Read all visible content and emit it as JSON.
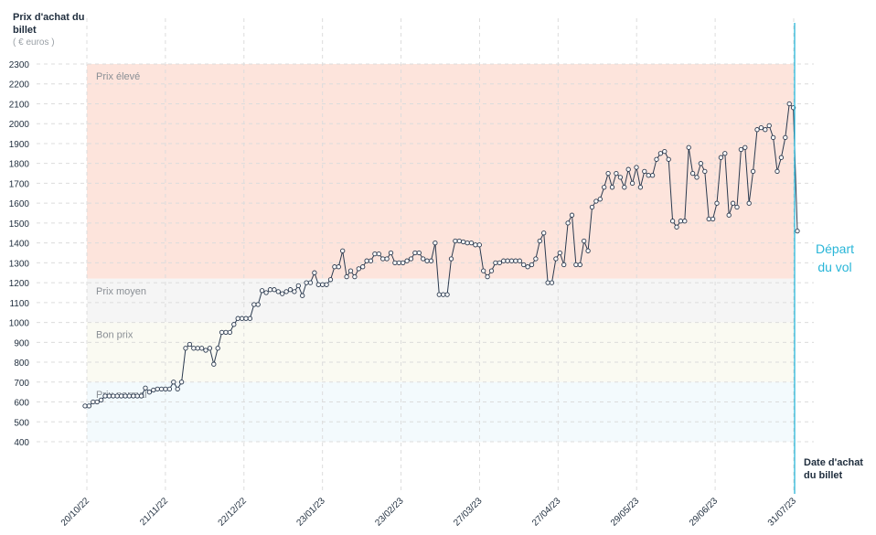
{
  "labels": {
    "y_title": "Prix d'achat du billet",
    "y_unit": "( € euros )",
    "x_title": "Date d'achat du billet",
    "departure": "Départ du vol"
  },
  "colors": {
    "line": "#2b3a4f",
    "departure_line": "#29b6d8",
    "grid": "#dcdcdc",
    "band_high": "#fde4dc",
    "band_mid": "#f5f5f5",
    "band_good": "#fafaf2",
    "band_normal": "#f3fafd"
  },
  "chart_data": {
    "type": "line",
    "ylim": [
      400,
      2300
    ],
    "yticks": [
      400,
      500,
      600,
      700,
      800,
      900,
      1000,
      1100,
      1200,
      1300,
      1400,
      1500,
      1600,
      1700,
      1800,
      1900,
      2000,
      2100,
      2200,
      2300
    ],
    "xtick_labels": [
      "20/10/22",
      "21/11/22",
      "22/12/22",
      "23/01/23",
      "23/02/23",
      "27/03/23",
      "27/04/23",
      "29/05/23",
      "29/06/23",
      "31/07/23"
    ],
    "bands": [
      {
        "label": "Prix élevé",
        "from": 1220,
        "to": 2300
      },
      {
        "label": "Prix moyen",
        "from": 1000,
        "to": 1220
      },
      {
        "label": "Bon prix",
        "from": 700,
        "to": 1000
      },
      {
        "label": "Prix normal",
        "from": 400,
        "to": 700
      }
    ],
    "series": [
      {
        "values": [
          580,
          580,
          600,
          600,
          610,
          630,
          630,
          630,
          630,
          630,
          630,
          630,
          630,
          630,
          630,
          670,
          650,
          660,
          665,
          665,
          665,
          665,
          700,
          665,
          700,
          870,
          890,
          870,
          870,
          870,
          860,
          870,
          790,
          870,
          950,
          950,
          950,
          990,
          1020,
          1020,
          1020,
          1020,
          1090,
          1090,
          1160,
          1150,
          1165,
          1165,
          1155,
          1145,
          1155,
          1165,
          1155,
          1185,
          1135,
          1200,
          1200,
          1250,
          1190,
          1190,
          1190,
          1215,
          1280,
          1280,
          1360,
          1230,
          1260,
          1230,
          1270,
          1280,
          1310,
          1310,
          1345,
          1345,
          1320,
          1320,
          1350,
          1300,
          1300,
          1300,
          1310,
          1320,
          1350,
          1350,
          1320,
          1310,
          1310,
          1400,
          1140,
          1140,
          1140,
          1320,
          1410,
          1410,
          1405,
          1400,
          1400,
          1390,
          1390,
          1260,
          1230,
          1260,
          1300,
          1300,
          1310,
          1310,
          1310,
          1310,
          1310,
          1290,
          1280,
          1290,
          1320,
          1410,
          1450,
          1200,
          1200,
          1320,
          1350,
          1290,
          1500,
          1540,
          1290,
          1290,
          1410,
          1360,
          1580,
          1610,
          1620,
          1680,
          1750,
          1680,
          1750,
          1730,
          1680,
          1770,
          1700,
          1780,
          1680,
          1760,
          1740,
          1740,
          1820,
          1850,
          1860,
          1820,
          1510,
          1480,
          1510,
          1510,
          1880,
          1750,
          1730,
          1800,
          1760,
          1520,
          1520,
          1600,
          1830,
          1850,
          1540,
          1600,
          1580,
          1870,
          1880,
          1600,
          1760,
          1970,
          1980,
          1970,
          1990,
          1930,
          1760,
          1830,
          1930,
          2100,
          2080,
          1460
        ]
      }
    ]
  }
}
